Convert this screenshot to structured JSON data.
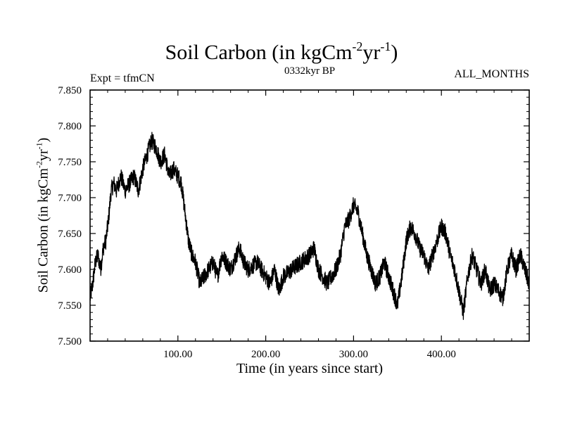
{
  "chart_data": {
    "type": "line",
    "title": "Soil Carbon (in kgCm",
    "title_sup1": "-2",
    "title_mid": "yr",
    "title_sup2": "-1",
    "title_end": ")",
    "subtitle": "0332kyr BP",
    "left_annotation": "Expt = tfmCN",
    "right_annotation": "ALL_MONTHS",
    "xlabel": "Time (in years since start)",
    "ylabel": "Soil Carbon (in kgCm",
    "ylabel_sup1": "-2",
    "ylabel_mid": "yr",
    "ylabel_sup2": "-1",
    "ylabel_end": ")",
    "xlim": [
      0,
      500
    ],
    "ylim": [
      7.5,
      7.85
    ],
    "x_ticks": [
      100,
      200,
      300,
      400
    ],
    "x_tick_labels": [
      "100.00",
      "200.00",
      "300.00",
      "400.00"
    ],
    "y_ticks": [
      7.5,
      7.55,
      7.6,
      7.65,
      7.7,
      7.75,
      7.8,
      7.85
    ],
    "y_tick_labels": [
      "7.500",
      "7.550",
      "7.600",
      "7.650",
      "7.700",
      "7.750",
      "7.800",
      "7.850"
    ],
    "grid": false,
    "noise_amplitude": 0.012,
    "series": [
      {
        "color": "#000000",
        "x": [
          0,
          3,
          6,
          9,
          12,
          15,
          18,
          21,
          24,
          27,
          30,
          35,
          40,
          45,
          50,
          55,
          60,
          65,
          70,
          75,
          80,
          85,
          90,
          95,
          100,
          104,
          108,
          112,
          116,
          120,
          125,
          130,
          135,
          140,
          145,
          150,
          160,
          170,
          175,
          180,
          190,
          200,
          205,
          210,
          215,
          220,
          230,
          240,
          250,
          255,
          260,
          270,
          280,
          285,
          290,
          295,
          300,
          305,
          310,
          315,
          320,
          325,
          330,
          335,
          340,
          345,
          350,
          355,
          360,
          365,
          370,
          375,
          380,
          385,
          390,
          395,
          400,
          405,
          410,
          415,
          420,
          425,
          430,
          435,
          440,
          445,
          450,
          455,
          460,
          465,
          470,
          475,
          480,
          485,
          490,
          495,
          500
        ],
        "y": [
          7.56,
          7.58,
          7.61,
          7.62,
          7.6,
          7.63,
          7.64,
          7.67,
          7.71,
          7.72,
          7.71,
          7.73,
          7.71,
          7.72,
          7.73,
          7.71,
          7.74,
          7.76,
          7.78,
          7.77,
          7.75,
          7.76,
          7.73,
          7.74,
          7.73,
          7.72,
          7.68,
          7.64,
          7.62,
          7.61,
          7.58,
          7.59,
          7.6,
          7.61,
          7.59,
          7.62,
          7.6,
          7.63,
          7.61,
          7.6,
          7.61,
          7.59,
          7.58,
          7.6,
          7.57,
          7.59,
          7.6,
          7.61,
          7.62,
          7.63,
          7.6,
          7.58,
          7.6,
          7.62,
          7.66,
          7.67,
          7.69,
          7.68,
          7.65,
          7.62,
          7.6,
          7.58,
          7.59,
          7.61,
          7.59,
          7.57,
          7.55,
          7.59,
          7.64,
          7.66,
          7.65,
          7.63,
          7.62,
          7.6,
          7.62,
          7.64,
          7.66,
          7.65,
          7.62,
          7.6,
          7.57,
          7.54,
          7.59,
          7.62,
          7.6,
          7.58,
          7.6,
          7.57,
          7.58,
          7.57,
          7.56,
          7.6,
          7.62,
          7.6,
          7.62,
          7.6,
          7.58
        ]
      }
    ]
  }
}
